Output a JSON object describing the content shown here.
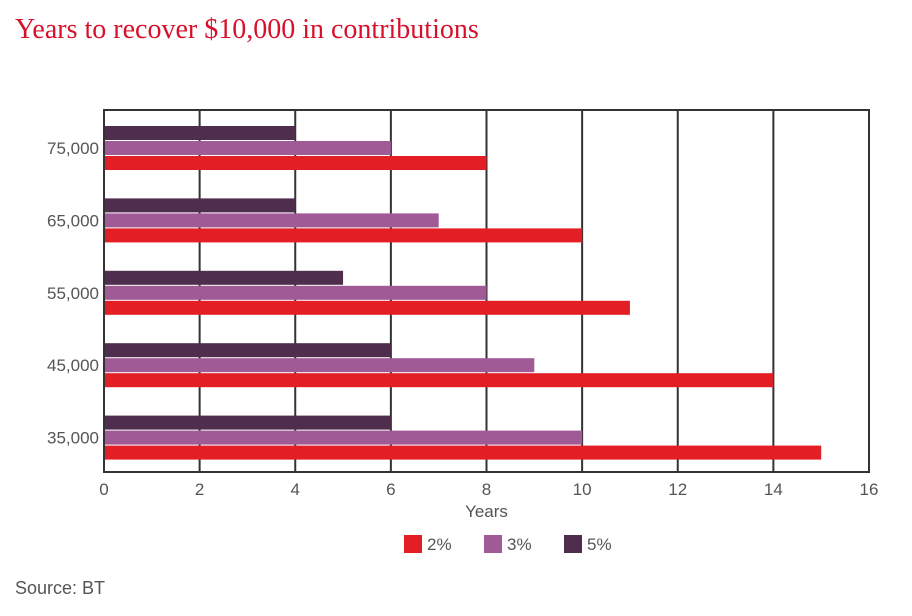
{
  "chart_data": {
    "type": "bar",
    "orientation": "horizontal",
    "title": "Years to recover $10,000 in contributions",
    "xlabel": "Years",
    "ylabel": "",
    "xlim": [
      0,
      16
    ],
    "xticks": [
      0,
      2,
      4,
      6,
      8,
      10,
      12,
      14,
      16
    ],
    "grid": "vertical",
    "legend_position": "bottom",
    "categories": [
      "75,000",
      "65,000",
      "55,000",
      "45,000",
      "35,000"
    ],
    "series": [
      {
        "name": "5%",
        "color": "#4f2d4c",
        "values": [
          4,
          4,
          5,
          6,
          6
        ]
      },
      {
        "name": "3%",
        "color": "#a05a96",
        "values": [
          6,
          7,
          8,
          9,
          10
        ]
      },
      {
        "name": "2%",
        "color": "#e31e24",
        "values": [
          8,
          10,
          11,
          14,
          15
        ]
      }
    ],
    "legend_order": [
      "2%",
      "3%",
      "5%"
    ]
  },
  "source": "Source: BT"
}
